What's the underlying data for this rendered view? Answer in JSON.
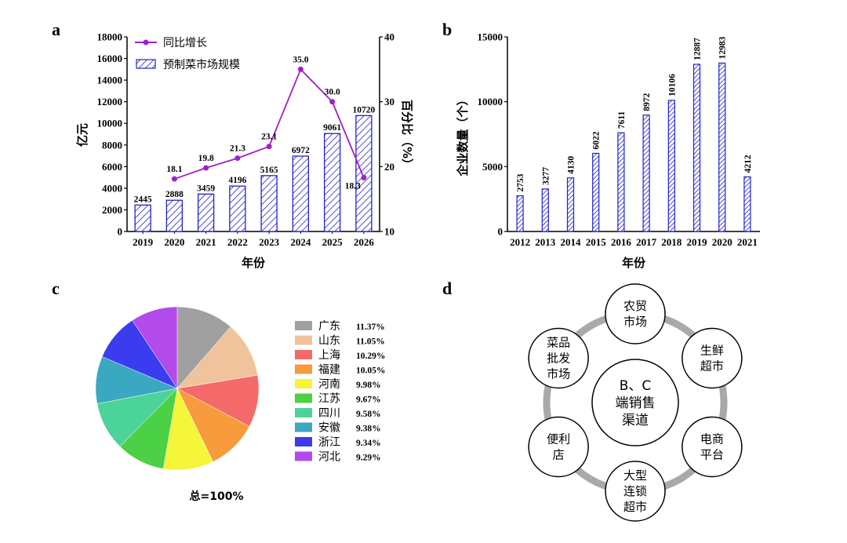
{
  "panel_labels": {
    "a": "a",
    "b": "b",
    "c": "c",
    "d": "d"
  },
  "chart_data": [
    {
      "id": "a",
      "type": "bar+line",
      "categories": [
        "2019",
        "2020",
        "2021",
        "2022",
        "2023",
        "2024",
        "2025",
        "2026"
      ],
      "xlabel": "年份",
      "ylabel": "亿元",
      "y2label": "百分比（%）",
      "ylim": [
        0,
        18000
      ],
      "y2lim": [
        10,
        40
      ],
      "yticks": [
        0,
        2000,
        4000,
        6000,
        8000,
        10000,
        12000,
        14000,
        16000,
        18000
      ],
      "y2ticks": [
        10,
        20,
        30,
        40
      ],
      "series": [
        {
          "name": "预制菜市场规模",
          "kind": "bar",
          "color": "#2222cc",
          "values": [
            2445,
            2888,
            3459,
            4196,
            5165,
            6972,
            9061,
            10720
          ]
        },
        {
          "name": "同比增长",
          "kind": "line",
          "axis": "right",
          "color": "#a020c8",
          "values": [
            null,
            18.1,
            19.8,
            21.3,
            23.1,
            35.0,
            30.0,
            18.3
          ],
          "labels": [
            "",
            "18.1",
            "19.8",
            "21.3",
            "23.1",
            "35.0",
            "30.0",
            "18.3"
          ]
        }
      ],
      "legend": "top-left"
    },
    {
      "id": "b",
      "type": "bar",
      "categories": [
        "2012",
        "2013",
        "2014",
        "2015",
        "2016",
        "2017",
        "2018",
        "2019",
        "2020",
        "2021"
      ],
      "values": [
        2753,
        3277,
        4130,
        6022,
        7611,
        8972,
        10106,
        12887,
        12983,
        4212
      ],
      "xlabel": "年份",
      "ylabel": "企业数量（个）",
      "ylim": [
        0,
        15000
      ],
      "yticks": [
        0,
        5000,
        10000,
        15000
      ],
      "color": "#2222cc"
    },
    {
      "id": "c",
      "type": "pie",
      "labels": [
        "广东",
        "山东",
        "上海",
        "福建",
        "河南",
        "江苏",
        "四川",
        "安徽",
        "浙江",
        "河北"
      ],
      "values": [
        11.37,
        11.05,
        10.29,
        10.05,
        9.98,
        9.67,
        9.58,
        9.38,
        9.34,
        9.29
      ],
      "value_labels": [
        "11.37%",
        "11.05%",
        "10.29%",
        "10.05%",
        "9.98%",
        "9.67%",
        "9.58%",
        "9.38%",
        "9.34%",
        "9.29%"
      ],
      "colors": [
        "#a0a0a0",
        "#f0c39c",
        "#f46a6a",
        "#f79b3c",
        "#f5f53a",
        "#4bd046",
        "#4cd39a",
        "#3aa8c0",
        "#3b3bf0",
        "#b24bea"
      ],
      "total_label": "总=100%",
      "legend": "right"
    }
  ],
  "diagram": {
    "center": [
      "B、C",
      "端销售",
      "渠道"
    ],
    "nodes": [
      [
        "农贸",
        "市场"
      ],
      [
        "生鲜",
        "超市"
      ],
      [
        "电商",
        "平台"
      ],
      [
        "大型",
        "连锁",
        "超市"
      ],
      [
        "便利",
        "店"
      ],
      [
        "菜品",
        "批发",
        "市场"
      ]
    ]
  }
}
